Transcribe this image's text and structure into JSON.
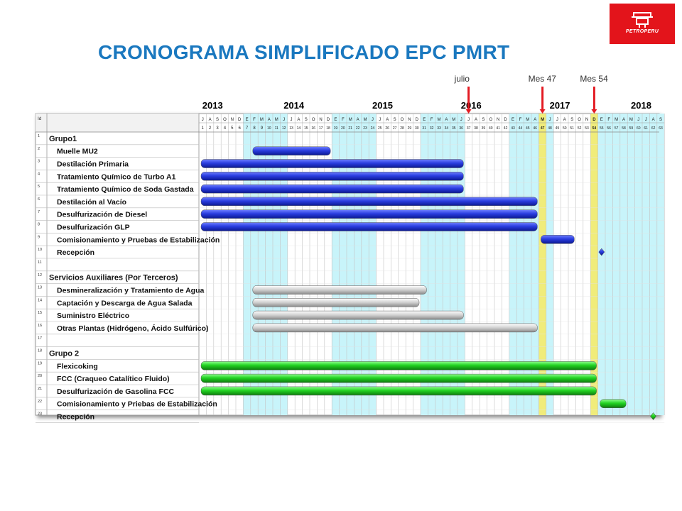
{
  "title": "CRONOGRAMA SIMPLIFICADO EPC PMRT",
  "logo": {
    "text": "PETROPERU"
  },
  "markers": [
    {
      "label": "julio",
      "month": 37
    },
    {
      "label": "Mes 47",
      "month": 47
    },
    {
      "label": "Mes 54",
      "month": 54
    }
  ],
  "chart_data": {
    "type": "gantt",
    "title": "CRONOGRAMA SIMPLIFICADO EPC PMRT",
    "id_header": "Id",
    "years": [
      {
        "label": "2013",
        "month": 3
      },
      {
        "label": "2014",
        "month": 14
      },
      {
        "label": "2015",
        "month": 26
      },
      {
        "label": "2016",
        "month": 38
      },
      {
        "label": "2017",
        "month": 50
      },
      {
        "label": "2018",
        "month": 61
      }
    ],
    "month_letters": [
      "J",
      "A",
      "S",
      "O",
      "N",
      "D",
      "E",
      "F",
      "M",
      "A",
      "M",
      "J",
      "J",
      "A",
      "S",
      "O",
      "N",
      "D",
      "E",
      "F",
      "M",
      "A",
      "M",
      "J",
      "J",
      "A",
      "S",
      "O",
      "N",
      "D",
      "E",
      "F",
      "M",
      "A",
      "M",
      "J",
      "J",
      "A",
      "S",
      "O",
      "N",
      "D",
      "E",
      "F",
      "M",
      "A",
      "M",
      "J",
      "J",
      "A",
      "S",
      "O",
      "N",
      "D",
      "E",
      "F",
      "M",
      "A",
      "M",
      "J",
      "J",
      "A",
      "S"
    ],
    "highlight_months": [
      47,
      54
    ],
    "rows": [
      {
        "id": "1",
        "name": "Grupo1",
        "type": "group"
      },
      {
        "id": "2",
        "name": "Muelle MU2",
        "type": "task",
        "color": "blue",
        "start": 8,
        "end": 18
      },
      {
        "id": "3",
        "name": "Destilación Primaria",
        "type": "task",
        "color": "blue",
        "start": 1,
        "end": 36
      },
      {
        "id": "4",
        "name": "Tratamiento Químico de Turbo A1",
        "type": "task",
        "color": "blue",
        "start": 1,
        "end": 36
      },
      {
        "id": "5",
        "name": "Tratamiento Químico de Soda Gastada",
        "type": "task",
        "color": "blue",
        "start": 1,
        "end": 36
      },
      {
        "id": "6",
        "name": "Destilación al Vacío",
        "type": "task",
        "color": "blue",
        "start": 1,
        "end": 46
      },
      {
        "id": "7",
        "name": "Desulfurización de Diesel",
        "type": "task",
        "color": "blue",
        "start": 1,
        "end": 46
      },
      {
        "id": "8",
        "name": "Desulfurización GLP",
        "type": "task",
        "color": "blue",
        "start": 1,
        "end": 46
      },
      {
        "id": "9",
        "name": "Comisionamiento y Pruebas de Estabilización",
        "type": "task",
        "color": "blue",
        "start": 47,
        "end": 51
      },
      {
        "id": "10",
        "name": "Recepción",
        "type": "milestone",
        "color": "blue",
        "at": 55
      },
      {
        "id": "11",
        "name": "",
        "type": "empty"
      },
      {
        "id": "12",
        "name": "Servicios Auxiliares (Por Terceros)",
        "type": "group"
      },
      {
        "id": "13",
        "name": "Desmineralización y Tratamiento de Agua",
        "type": "task",
        "color": "gray",
        "start": 8,
        "end": 31
      },
      {
        "id": "14",
        "name": "Captación y Descarga de Agua Salada",
        "type": "task",
        "color": "gray",
        "start": 8,
        "end": 30
      },
      {
        "id": "15",
        "name": "Suministro Eléctrico",
        "type": "task",
        "color": "gray",
        "start": 8,
        "end": 36
      },
      {
        "id": "16",
        "name": "Otras Plantas (Hidrógeno, Ácido Sulfúrico)",
        "type": "task",
        "color": "gray",
        "start": 8,
        "end": 46
      },
      {
        "id": "17",
        "name": "",
        "type": "empty"
      },
      {
        "id": "18",
        "name": "Grupo 2",
        "type": "group"
      },
      {
        "id": "19",
        "name": "Flexicoking",
        "type": "task",
        "color": "green",
        "start": 1,
        "end": 54
      },
      {
        "id": "20",
        "name": "FCC (Craqueo Catalítico Fluido)",
        "type": "task",
        "color": "green",
        "start": 1,
        "end": 54
      },
      {
        "id": "21",
        "name": "Desulfurización de Gasolina FCC",
        "type": "task",
        "color": "green",
        "start": 1,
        "end": 54
      },
      {
        "id": "22",
        "name": "Comisionamiento y Priebas de Estabilización",
        "type": "task",
        "color": "green",
        "start": 55,
        "end": 58
      },
      {
        "id": "23",
        "name": "Recepción",
        "type": "milestone",
        "color": "green",
        "at": 62
      }
    ],
    "colors": {
      "blue": "#2233cc",
      "gray": "#b8b8b8",
      "green": "#22cc22",
      "shade": "#c8f4fa",
      "highlight": "#f0ec7a",
      "marker": "#e31b23"
    }
  }
}
